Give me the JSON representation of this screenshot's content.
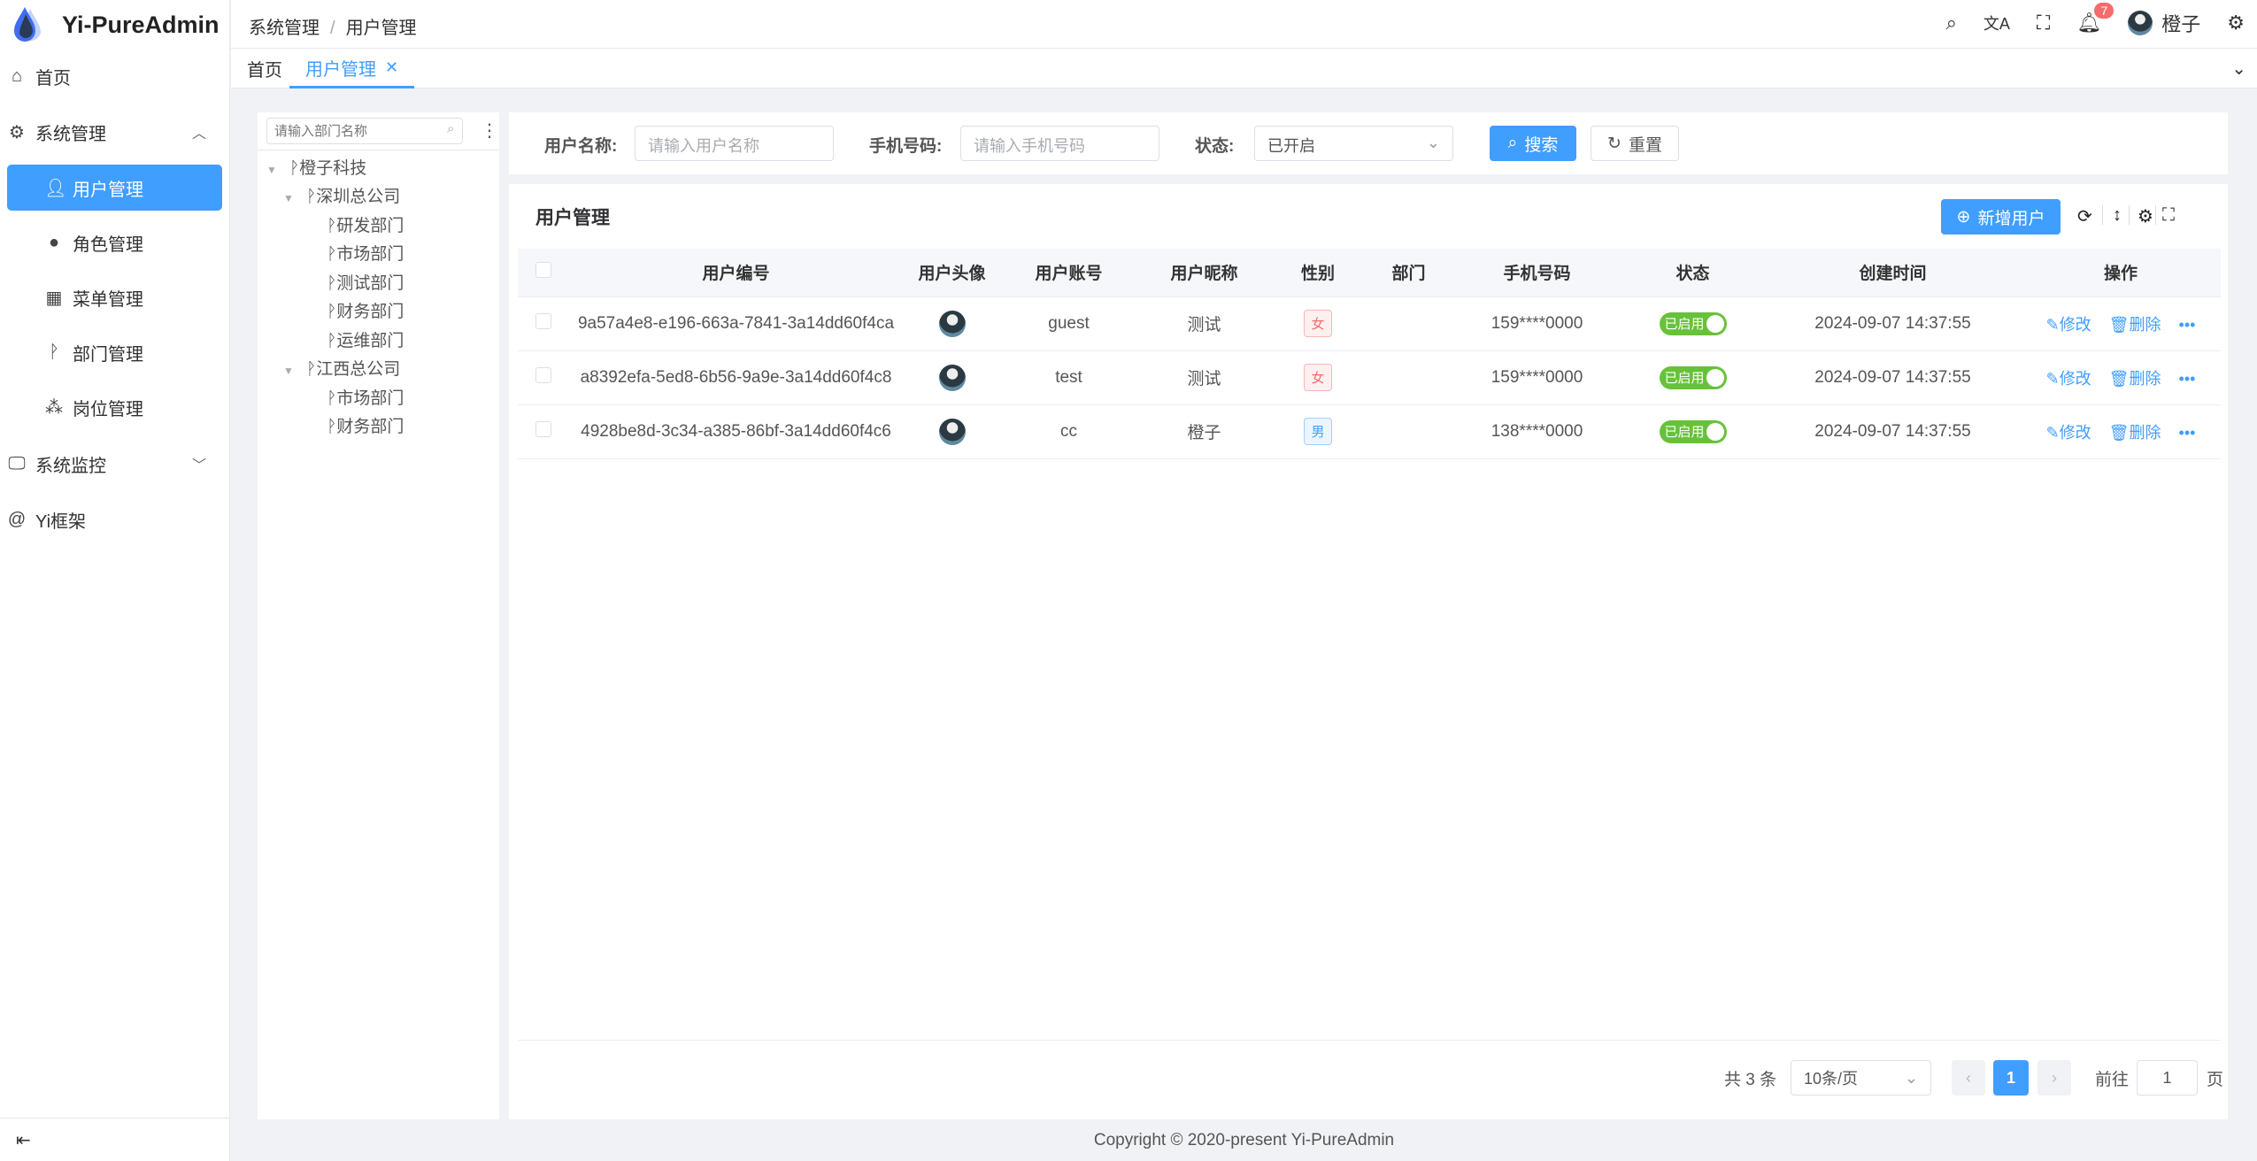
{
  "app": {
    "title": "Yi-PureAdmin"
  },
  "sidebar": {
    "items": [
      {
        "label": "首页",
        "icon": "home-icon"
      },
      {
        "label": "系统管理",
        "icon": "gear-icon"
      },
      {
        "label": "用户管理",
        "icon": "user-icon",
        "active": true
      },
      {
        "label": "角色管理",
        "icon": "role-icon"
      },
      {
        "label": "菜单管理",
        "icon": "grid-icon"
      },
      {
        "label": "部门管理",
        "icon": "branch-icon"
      },
      {
        "label": "岗位管理",
        "icon": "org-icon"
      },
      {
        "label": "系统监控",
        "icon": "monitor-icon"
      },
      {
        "label": "Yi框架",
        "icon": "at-icon"
      }
    ]
  },
  "header": {
    "breadcrumb": [
      "系统管理",
      "用户管理"
    ],
    "notification_count": "7",
    "username": "橙子"
  },
  "tabs": [
    {
      "label": "首页"
    },
    {
      "label": "用户管理",
      "active": true
    }
  ],
  "tree": {
    "placeholder": "请输入部门名称",
    "nodes": [
      "橙子科技",
      "深圳总公司",
      "研发部门",
      "市场部门",
      "测试部门",
      "财务部门",
      "运维部门",
      "江西总公司",
      "市场部门",
      "财务部门"
    ]
  },
  "search": {
    "username_label": "用户名称:",
    "username_placeholder": "请输入用户名称",
    "phone_label": "手机号码:",
    "phone_placeholder": "请输入手机号码",
    "status_label": "状态:",
    "status_value": "已开启",
    "search_btn": "搜索",
    "reset_btn": "重置"
  },
  "card": {
    "title": "用户管理",
    "add_btn": "新增用户"
  },
  "table": {
    "columns": [
      "用户编号",
      "用户头像",
      "用户账号",
      "用户昵称",
      "性别",
      "部门",
      "手机号码",
      "状态",
      "创建时间",
      "操作"
    ],
    "rows": [
      {
        "id": "9a57a4e8-e196-663a-7841-3a14dd60f4ca",
        "account": "guest",
        "nickname": "测试",
        "gender": "女",
        "dept": "",
        "phone": "159****0000",
        "status": "已启用",
        "created": "2024-09-07 14:37:55"
      },
      {
        "id": "a8392efa-5ed8-6b56-9a9e-3a14dd60f4c8",
        "account": "test",
        "nickname": "测试",
        "gender": "女",
        "dept": "",
        "phone": "159****0000",
        "status": "已启用",
        "created": "2024-09-07 14:37:55"
      },
      {
        "id": "4928be8d-3c34-a385-86bf-3a14dd60f4c6",
        "account": "cc",
        "nickname": "橙子",
        "gender": "男",
        "dept": "",
        "phone": "138****0000",
        "status": "已启用",
        "created": "2024-09-07 14:37:55"
      }
    ],
    "edit_label": "修改",
    "delete_label": "删除"
  },
  "pagination": {
    "total": "共 3 条",
    "page_size": "10条/页",
    "current": "1",
    "goto_label": "前往",
    "goto_value": "1",
    "page_suffix": "页"
  },
  "footer": {
    "copyright": "Copyright © 2020-present Yi-PureAdmin"
  },
  "colors": {
    "primary": "#409eff",
    "success": "#67c23a",
    "danger": "#f56c6c"
  }
}
